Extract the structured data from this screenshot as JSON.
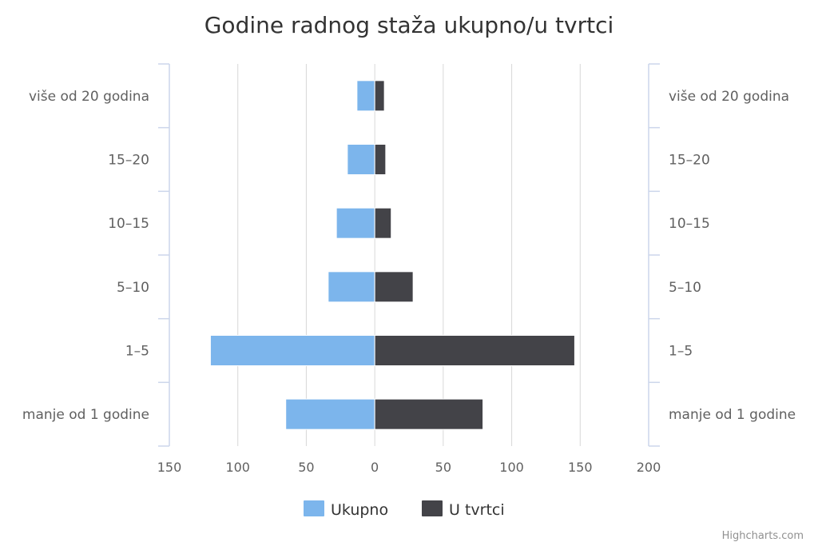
{
  "chart_data": {
    "type": "bar",
    "orientation": "horizontal",
    "layout": "population-pyramid",
    "title": "Godine radnog staža ukupno/u tvrtci",
    "categories": [
      "više od 20 godina",
      "15-20",
      "10-15",
      "5-10",
      "1-5",
      "manje od 1 godine"
    ],
    "category_labels_display": [
      "više od 20 godina",
      "15–20",
      "10–15",
      "5–10",
      "1–5",
      "manje od 1 godine"
    ],
    "series": [
      {
        "name": "Ukupno",
        "color": "#7cb5ec",
        "direction": "left",
        "values": [
          13,
          20,
          28,
          34,
          120,
          65
        ]
      },
      {
        "name": "U tvrtci",
        "color": "#434348",
        "direction": "right",
        "values": [
          7,
          8,
          12,
          28,
          146,
          79
        ]
      }
    ],
    "xlim": [
      -150,
      200
    ],
    "x_ticks": [
      -150,
      -100,
      -50,
      0,
      50,
      100,
      150,
      200
    ],
    "x_tick_labels": [
      "150",
      "100",
      "50",
      "0",
      "50",
      "100",
      "150",
      "200"
    ],
    "grid": true,
    "legend_position": "bottom-center",
    "credits": "Highcharts.com"
  }
}
